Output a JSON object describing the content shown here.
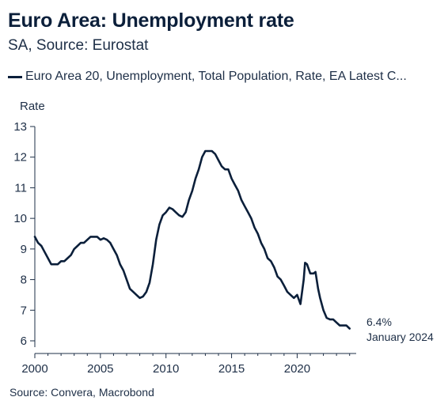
{
  "chart_data": {
    "type": "line",
    "title": "Euro Area: Unemployment rate",
    "subtitle": "SA, Source: Eurostat",
    "ylabel": "Rate",
    "xlabel": "",
    "source": "Source: Convera, Macrobond",
    "legend_position": "top-left",
    "grid": false,
    "xlim": [
      2000,
      2024.5
    ],
    "ylim": [
      6,
      13
    ],
    "x_ticks": [
      "2000",
      "2005",
      "2010",
      "2015",
      "2020"
    ],
    "y_ticks": [
      "6",
      "7",
      "8",
      "9",
      "10",
      "11",
      "12",
      "13"
    ],
    "annotation": {
      "value_label": "6.4%",
      "date_label": "January 2024"
    },
    "series": [
      {
        "name": "Euro Area 20, Unemployment, Total Population, Rate, EA Latest C...",
        "color": "#0b1f3a",
        "points": [
          [
            2000.0,
            9.4
          ],
          [
            2000.25,
            9.2
          ],
          [
            2000.5,
            9.1
          ],
          [
            2000.75,
            8.9
          ],
          [
            2001.0,
            8.7
          ],
          [
            2001.25,
            8.5
          ],
          [
            2001.5,
            8.5
          ],
          [
            2001.75,
            8.5
          ],
          [
            2002.0,
            8.6
          ],
          [
            2002.25,
            8.6
          ],
          [
            2002.5,
            8.7
          ],
          [
            2002.75,
            8.8
          ],
          [
            2003.0,
            9.0
          ],
          [
            2003.25,
            9.1
          ],
          [
            2003.5,
            9.2
          ],
          [
            2003.75,
            9.2
          ],
          [
            2004.0,
            9.3
          ],
          [
            2004.25,
            9.4
          ],
          [
            2004.5,
            9.4
          ],
          [
            2004.75,
            9.4
          ],
          [
            2005.0,
            9.3
          ],
          [
            2005.25,
            9.35
          ],
          [
            2005.5,
            9.3
          ],
          [
            2005.75,
            9.2
          ],
          [
            2006.0,
            9.0
          ],
          [
            2006.25,
            8.8
          ],
          [
            2006.5,
            8.5
          ],
          [
            2006.75,
            8.3
          ],
          [
            2007.0,
            8.0
          ],
          [
            2007.25,
            7.7
          ],
          [
            2007.5,
            7.6
          ],
          [
            2007.75,
            7.5
          ],
          [
            2008.0,
            7.4
          ],
          [
            2008.25,
            7.45
          ],
          [
            2008.5,
            7.6
          ],
          [
            2008.75,
            7.9
          ],
          [
            2009.0,
            8.5
          ],
          [
            2009.25,
            9.3
          ],
          [
            2009.5,
            9.8
          ],
          [
            2009.75,
            10.1
          ],
          [
            2010.0,
            10.2
          ],
          [
            2010.25,
            10.35
          ],
          [
            2010.5,
            10.3
          ],
          [
            2010.75,
            10.2
          ],
          [
            2011.0,
            10.1
          ],
          [
            2011.25,
            10.05
          ],
          [
            2011.5,
            10.2
          ],
          [
            2011.75,
            10.6
          ],
          [
            2012.0,
            10.9
          ],
          [
            2012.25,
            11.3
          ],
          [
            2012.5,
            11.6
          ],
          [
            2012.75,
            12.0
          ],
          [
            2013.0,
            12.2
          ],
          [
            2013.25,
            12.2
          ],
          [
            2013.5,
            12.2
          ],
          [
            2013.75,
            12.1
          ],
          [
            2014.0,
            11.9
          ],
          [
            2014.25,
            11.7
          ],
          [
            2014.5,
            11.6
          ],
          [
            2014.75,
            11.6
          ],
          [
            2015.0,
            11.3
          ],
          [
            2015.25,
            11.1
          ],
          [
            2015.5,
            10.9
          ],
          [
            2015.75,
            10.6
          ],
          [
            2016.0,
            10.4
          ],
          [
            2016.25,
            10.2
          ],
          [
            2016.5,
            10.0
          ],
          [
            2016.75,
            9.7
          ],
          [
            2017.0,
            9.5
          ],
          [
            2017.25,
            9.2
          ],
          [
            2017.5,
            9.0
          ],
          [
            2017.75,
            8.7
          ],
          [
            2018.0,
            8.6
          ],
          [
            2018.25,
            8.4
          ],
          [
            2018.5,
            8.1
          ],
          [
            2018.75,
            8.0
          ],
          [
            2019.0,
            7.8
          ],
          [
            2019.25,
            7.6
          ],
          [
            2019.5,
            7.5
          ],
          [
            2019.75,
            7.4
          ],
          [
            2020.0,
            7.5
          ],
          [
            2020.25,
            7.2
          ],
          [
            2020.5,
            8.0
          ],
          [
            2020.6,
            8.55
          ],
          [
            2020.75,
            8.5
          ],
          [
            2021.0,
            8.2
          ],
          [
            2021.25,
            8.2
          ],
          [
            2021.4,
            8.25
          ],
          [
            2021.6,
            7.7
          ],
          [
            2021.75,
            7.4
          ],
          [
            2022.0,
            7.0
          ],
          [
            2022.25,
            6.75
          ],
          [
            2022.5,
            6.7
          ],
          [
            2022.75,
            6.7
          ],
          [
            2023.0,
            6.6
          ],
          [
            2023.25,
            6.5
          ],
          [
            2023.5,
            6.5
          ],
          [
            2023.75,
            6.5
          ],
          [
            2024.0,
            6.4
          ]
        ]
      }
    ]
  }
}
